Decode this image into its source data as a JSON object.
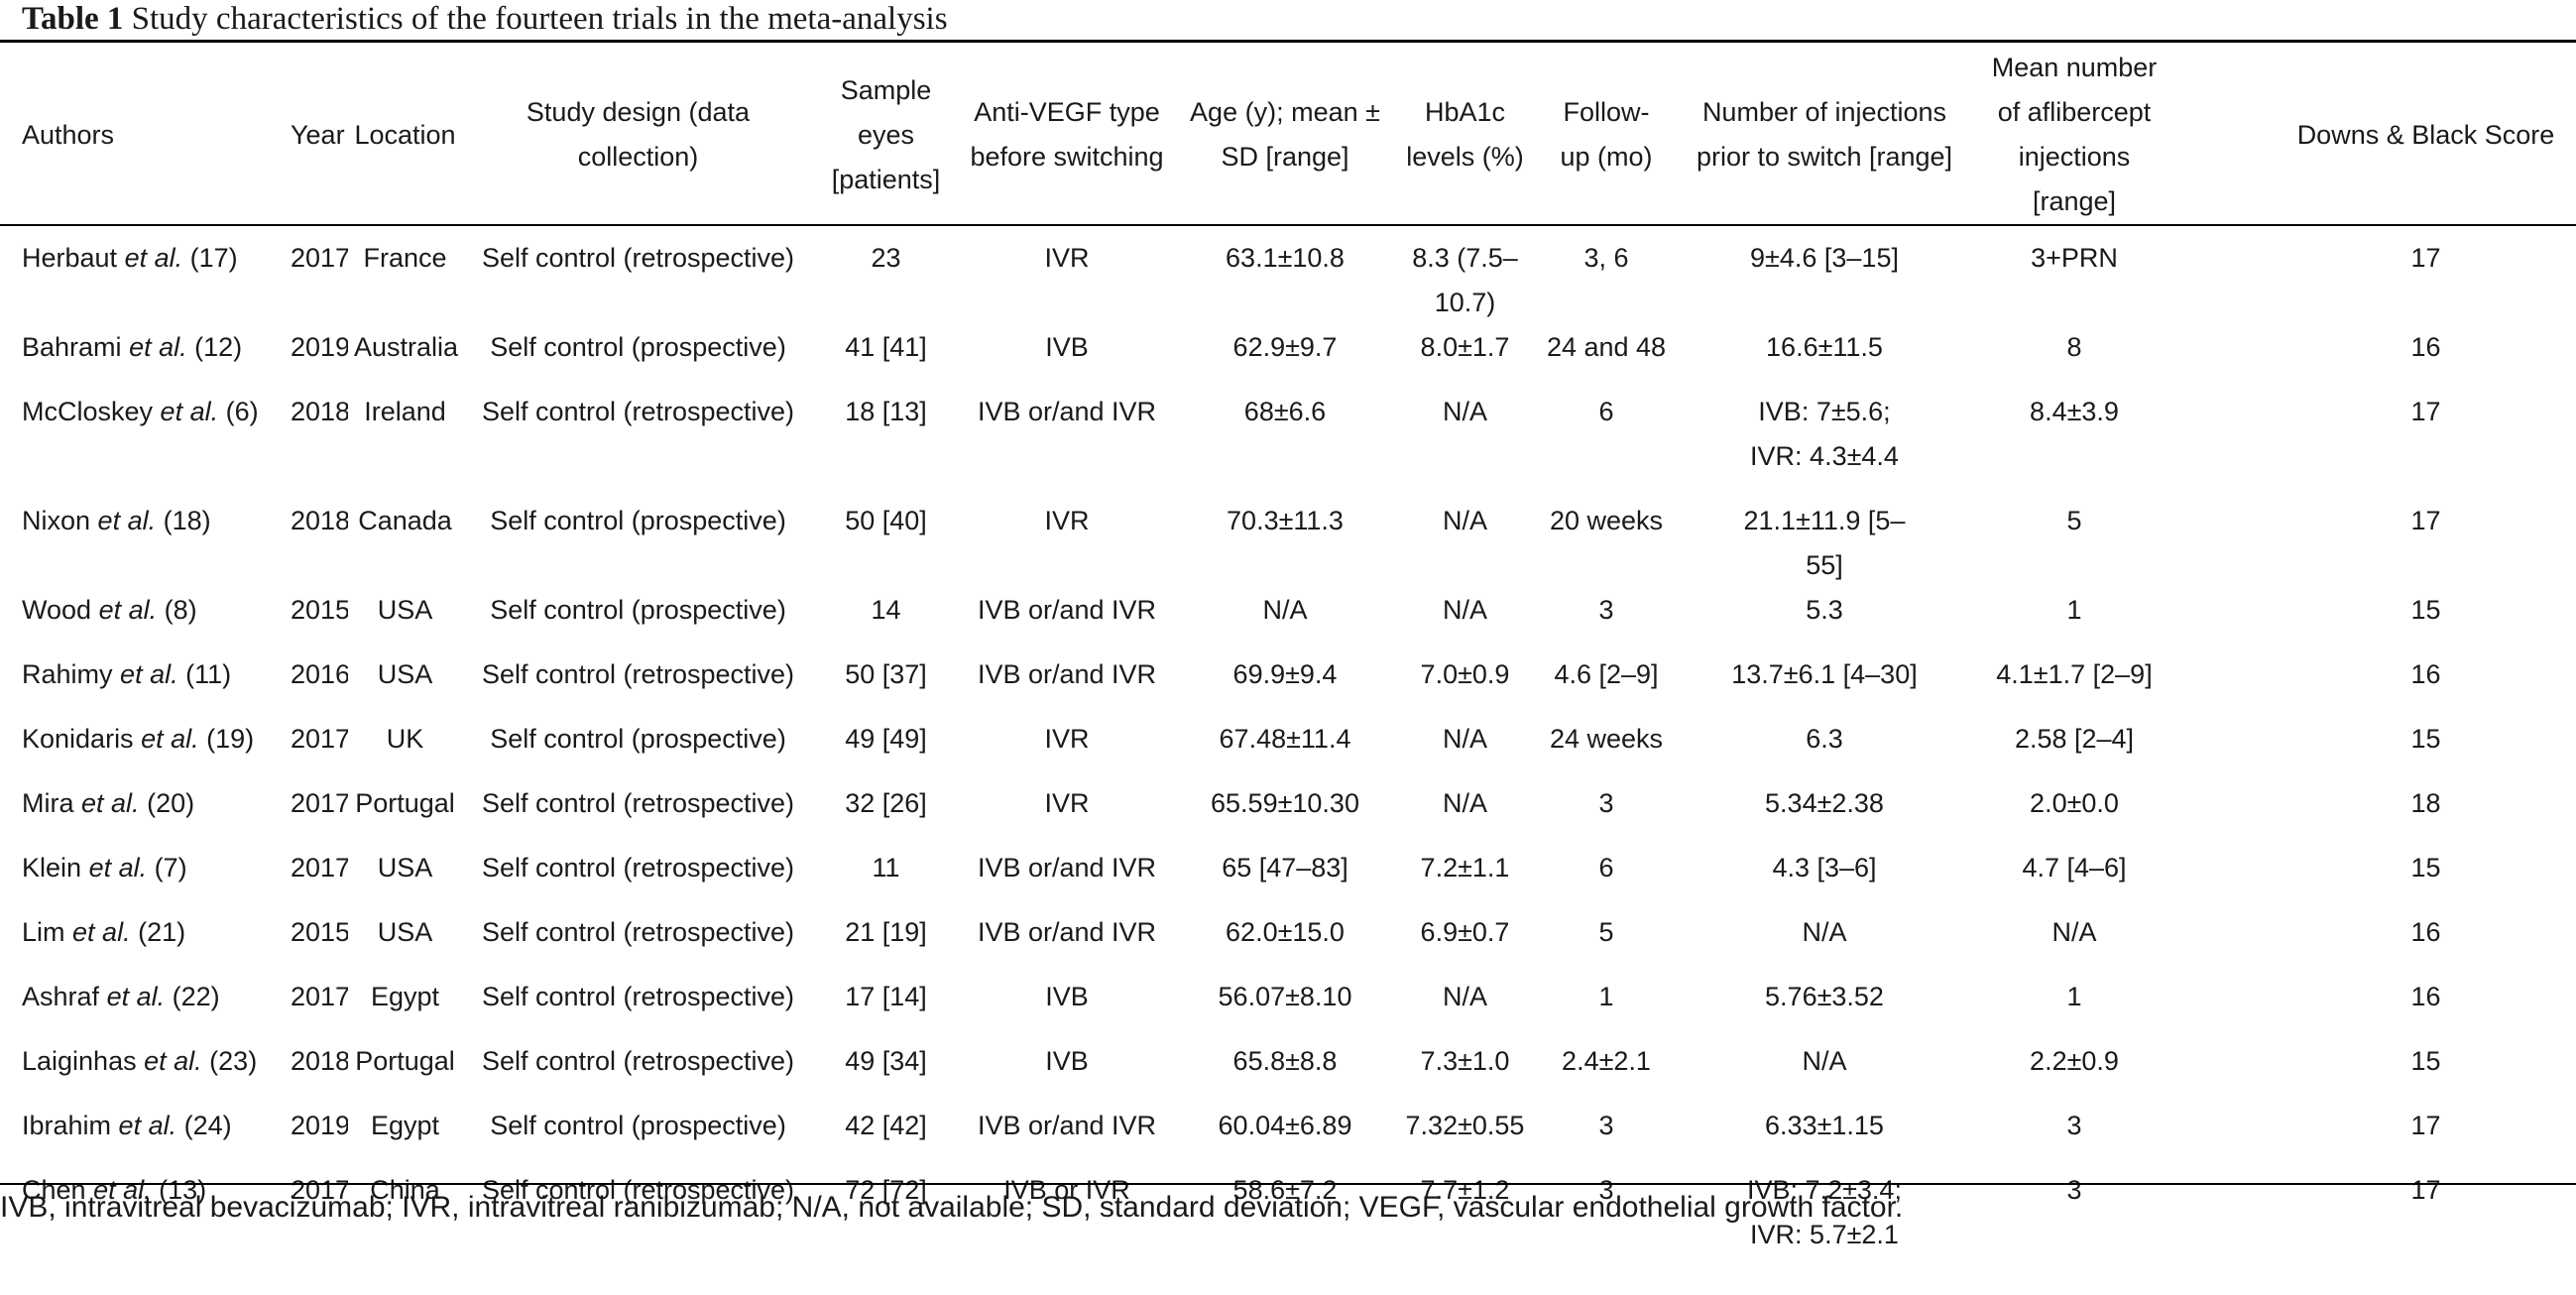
{
  "caption": {
    "label": "Table 1",
    "text": "Study characteristics of the fourteen trials in the meta-analysis"
  },
  "headers": [
    "Authors",
    "Year",
    "Location",
    "Study design (data collection)",
    "Sample eyes [patients]",
    "Anti-VEGF type before switching",
    "Age (y); mean ± SD [range]",
    "HbA1c levels (%)",
    "Follow-up (mo)",
    "Number of injections prior to switch [range]",
    "Mean number of aflibercept injections [range]",
    "Downs & Black Score"
  ],
  "rows": [
    {
      "author": "Herbaut",
      "etal": "et al.",
      "ref": "(17)",
      "year": "2017",
      "location": "France",
      "design": "Self control (retrospective)",
      "sample": "23",
      "antivegf": "IVR",
      "age": "63.1±10.8",
      "hba1c": "8.3 (7.5–10.7)",
      "followup": "3, 6",
      "injections": "9±4.6 [3–15]",
      "aflibercept": "3+PRN",
      "score": "17"
    },
    {
      "author": "Bahrami",
      "etal": "et al.",
      "ref": "(12)",
      "year": "2019",
      "location": "Australia",
      "design": "Self control (prospective)",
      "sample": "41 [41]",
      "antivegf": "IVB",
      "age": "62.9±9.7",
      "hba1c": "8.0±1.7",
      "followup": "24 and 48",
      "injections": "16.6±11.5",
      "aflibercept": "8",
      "score": "16"
    },
    {
      "author": "McCloskey",
      "etal": "et al.",
      "ref": "(6)",
      "year": "2018",
      "location": "Ireland",
      "design": "Self control (retrospective)",
      "sample": "18 [13]",
      "antivegf": "IVB or/and IVR",
      "age": "68±6.6",
      "hba1c": "N/A",
      "followup": "6",
      "injections": "IVB: 7±5.6; IVR: 4.3±4.4",
      "aflibercept": "8.4±3.9",
      "score": "17"
    },
    {
      "author": "Nixon",
      "etal": "et al.",
      "ref": "(18)",
      "year": "2018",
      "location": "Canada",
      "design": "Self control (prospective)",
      "sample": "50 [40]",
      "antivegf": "IVR",
      "age": "70.3±11.3",
      "hba1c": "N/A",
      "followup": "20 weeks",
      "injections": "21.1±11.9 [5–55]",
      "aflibercept": "5",
      "score": "17"
    },
    {
      "author": "Wood",
      "etal": "et al.",
      "ref": "(8)",
      "year": "2015",
      "location": "USA",
      "design": "Self control (prospective)",
      "sample": "14",
      "antivegf": "IVB or/and IVR",
      "age": "N/A",
      "hba1c": "N/A",
      "followup": "3",
      "injections": "5.3",
      "aflibercept": "1",
      "score": "15"
    },
    {
      "author": "Rahimy",
      "etal": "et al.",
      "ref": "(11)",
      "year": "2016",
      "location": "USA",
      "design": "Self control (retrospective)",
      "sample": "50 [37]",
      "antivegf": "IVB or/and IVR",
      "age": "69.9±9.4",
      "hba1c": "7.0±0.9",
      "followup": "4.6 [2–9]",
      "injections": "13.7±6.1 [4–30]",
      "aflibercept": "4.1±1.7 [2–9]",
      "score": "16"
    },
    {
      "author": "Konidaris",
      "etal": "et al.",
      "ref": "(19)",
      "year": "2017",
      "location": "UK",
      "design": "Self control (prospective)",
      "sample": "49 [49]",
      "antivegf": "IVR",
      "age": "67.48±11.4",
      "hba1c": "N/A",
      "followup": "24 weeks",
      "injections": "6.3",
      "aflibercept": "2.58 [2–4]",
      "score": "15"
    },
    {
      "author": "Mira",
      "etal": "et al.",
      "ref": "(20)",
      "year": "2017",
      "location": "Portugal",
      "design": "Self control (retrospective)",
      "sample": "32 [26]",
      "antivegf": "IVR",
      "age": "65.59±10.30",
      "hba1c": "N/A",
      "followup": "3",
      "injections": "5.34±2.38",
      "aflibercept": "2.0±0.0",
      "score": "18"
    },
    {
      "author": "Klein",
      "etal": "et al.",
      "ref": "(7)",
      "year": "2017",
      "location": "USA",
      "design": "Self control (retrospective)",
      "sample": "11",
      "antivegf": "IVB or/and IVR",
      "age": "65 [47–83]",
      "hba1c": "7.2±1.1",
      "followup": "6",
      "injections": "4.3 [3–6]",
      "aflibercept": "4.7 [4–6]",
      "score": "15"
    },
    {
      "author": "Lim",
      "etal": "et al.",
      "ref": "(21)",
      "year": "2015",
      "location": "USA",
      "design": "Self control (retrospective)",
      "sample": "21 [19]",
      "antivegf": "IVB or/and IVR",
      "age": "62.0±15.0",
      "hba1c": "6.9±0.7",
      "followup": "5",
      "injections": "N/A",
      "aflibercept": "N/A",
      "score": "16"
    },
    {
      "author": "Ashraf",
      "etal": "et al.",
      "ref": "(22)",
      "year": "2017",
      "location": "Egypt",
      "design": "Self control (retrospective)",
      "sample": "17 [14]",
      "antivegf": "IVB",
      "age": "56.07±8.10",
      "hba1c": "N/A",
      "followup": "1",
      "injections": "5.76±3.52",
      "aflibercept": "1",
      "score": "16"
    },
    {
      "author": "Laiginhas",
      "etal": "et al.",
      "ref": "(23)",
      "year": "2018",
      "location": "Portugal",
      "design": "Self control (retrospective)",
      "sample": "49 [34]",
      "antivegf": "IVB",
      "age": "65.8±8.8",
      "hba1c": "7.3±1.0",
      "followup": "2.4±2.1",
      "injections": "N/A",
      "aflibercept": "2.2±0.9",
      "score": "15"
    },
    {
      "author": "Ibrahim",
      "etal": "et al.",
      "ref": "(24)",
      "year": "2019",
      "location": "Egypt",
      "design": "Self control (prospective)",
      "sample": "42 [42]",
      "antivegf": "IVB or/and IVR",
      "age": "60.04±6.89",
      "hba1c": "7.32±0.55",
      "followup": "3",
      "injections": "6.33±1.15",
      "aflibercept": "3",
      "score": "17"
    },
    {
      "author": "Chen",
      "etal": "et al.",
      "ref": "(13)",
      "year": "2017",
      "location": "China",
      "design": "Self control (retrospective)",
      "sample": "72 [72]",
      "antivegf": "IVB or IVR",
      "age": "58.6±7.2",
      "hba1c": "7.7±1.2",
      "followup": "3",
      "injections": "IVB: 7.2±3.4; IVR: 5.7±2.1",
      "aflibercept": "3",
      "score": "17"
    }
  ],
  "footnote": "IVB, intravitreal bevacizumab; IVR, intravitreal ranibizumab; N/A, not available; SD, standard deviation; VEGF, vascular endothelial growth factor."
}
